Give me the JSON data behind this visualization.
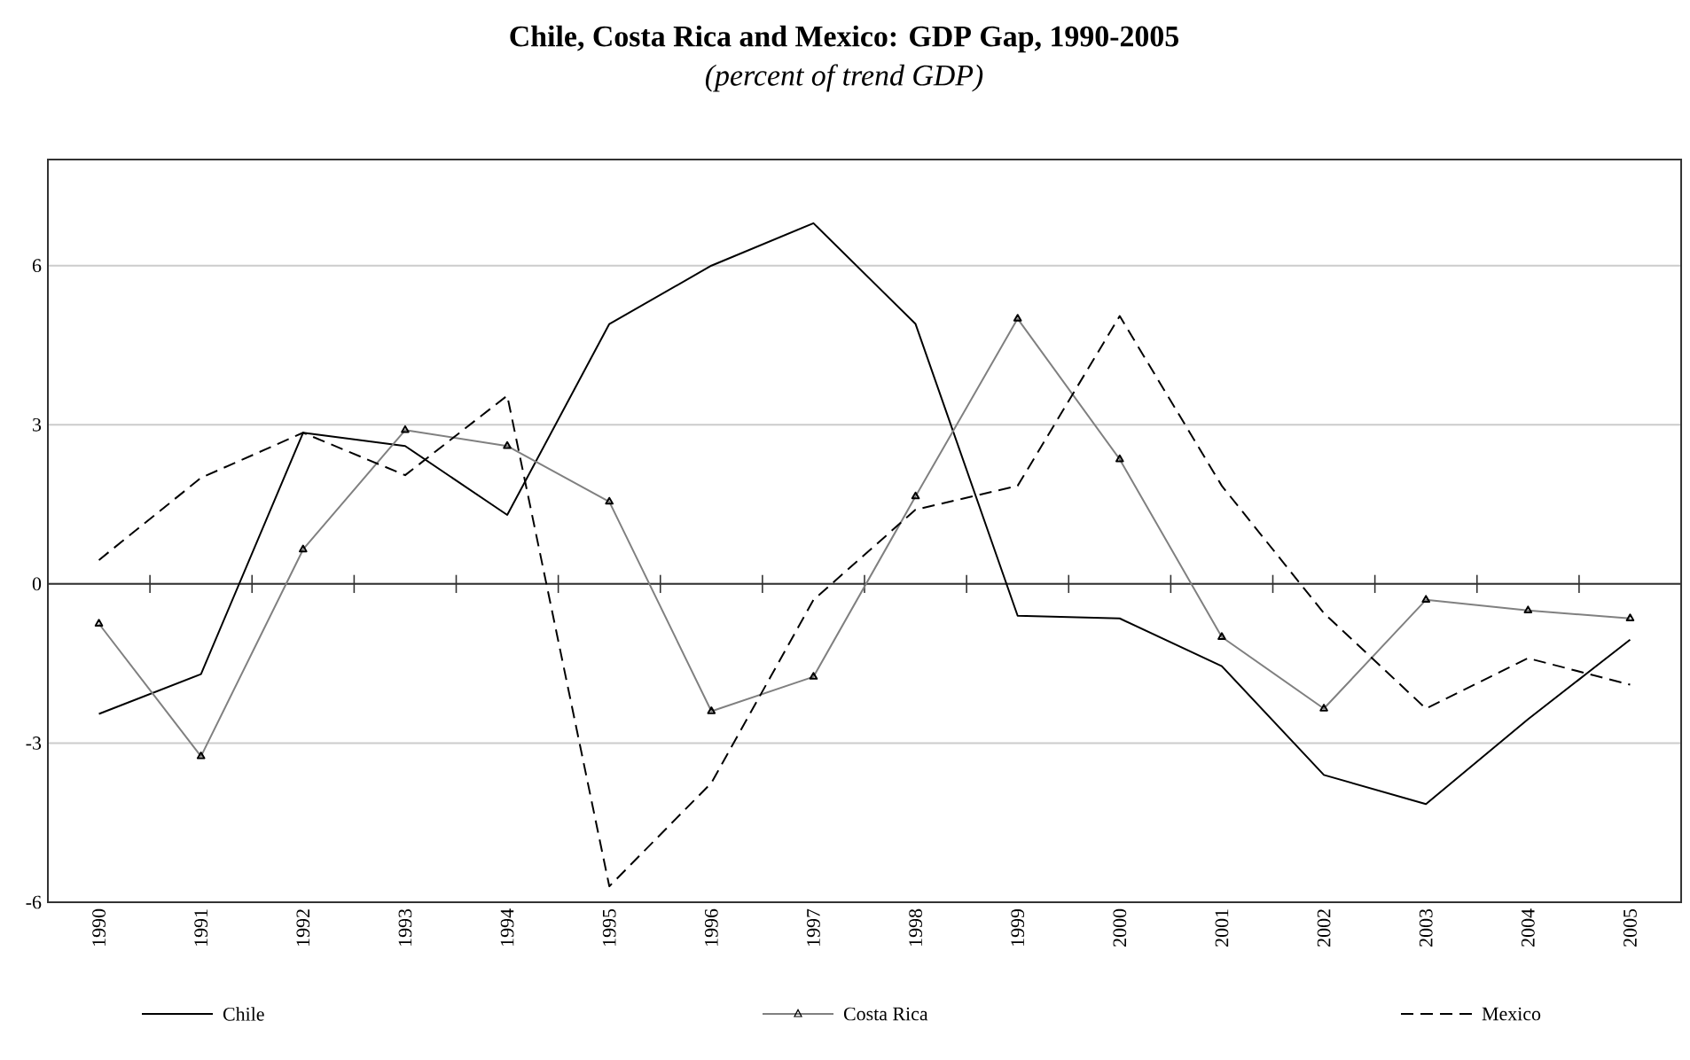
{
  "chart_data": {
    "type": "line",
    "title": "Chile, Costa Rica and Mexico: GDP Gap, 1990-2005",
    "subtitle": "(percent of trend GDP)",
    "categories": [
      "1990",
      "1991",
      "1992",
      "1993",
      "1994",
      "1995",
      "1996",
      "1997",
      "1998",
      "1999",
      "2000",
      "2001",
      "2002",
      "2003",
      "2004",
      "2005"
    ],
    "series": [
      {
        "name": "Chile",
        "color": "#000000",
        "line_style": "solid",
        "marker": "none",
        "values": [
          -2.45,
          -1.7,
          2.85,
          2.6,
          1.3,
          4.9,
          6.0,
          6.8,
          4.9,
          -0.6,
          -0.65,
          -1.55,
          -3.6,
          -4.15,
          -2.55,
          -1.05
        ]
      },
      {
        "name": "Costa Rica",
        "color": "#808080",
        "line_style": "solid",
        "marker": "triangle",
        "values": [
          -0.75,
          -3.25,
          0.65,
          2.9,
          2.6,
          1.55,
          -2.4,
          -1.75,
          1.65,
          5.0,
          2.35,
          -1.0,
          -2.35,
          -0.3,
          -0.5,
          -0.65
        ]
      },
      {
        "name": "Mexico",
        "color": "#000000",
        "line_style": "dashed",
        "marker": "none",
        "values": [
          0.45,
          2.0,
          2.85,
          2.05,
          3.55,
          -5.7,
          -3.75,
          -0.3,
          1.4,
          1.85,
          5.05,
          1.85,
          -0.55,
          -2.35,
          -1.4,
          -1.9
        ]
      }
    ],
    "ylim": [
      -6,
      8
    ],
    "yticks": [
      -6,
      -3,
      0,
      3,
      6
    ],
    "grid": "y",
    "legend": "bottom"
  }
}
